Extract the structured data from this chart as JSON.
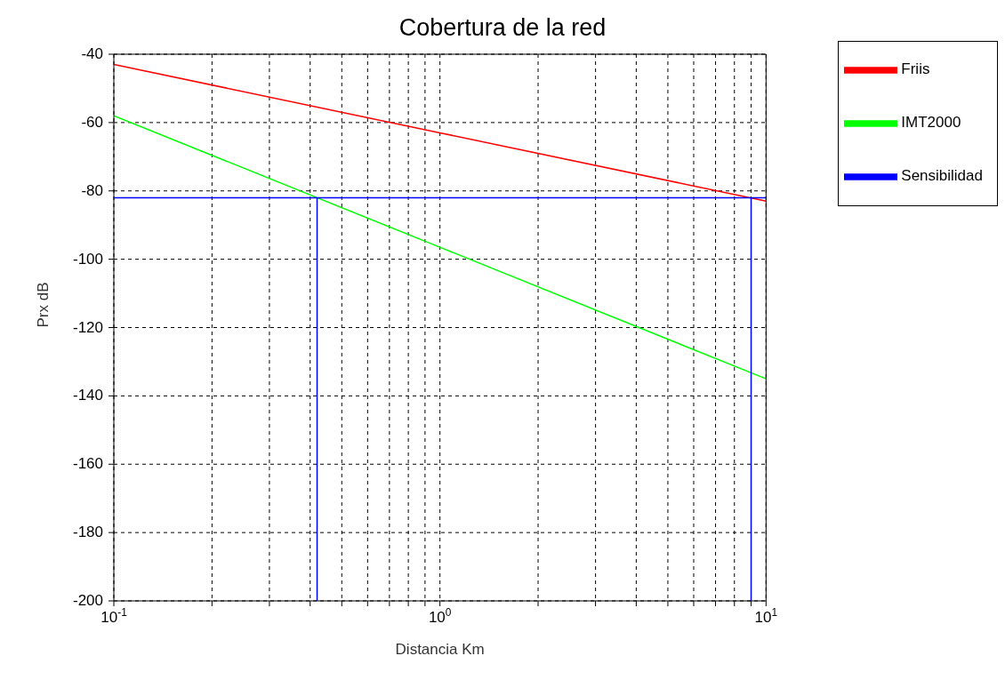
{
  "chart_data": {
    "type": "line",
    "title": "Cobertura de la red",
    "xlabel": "Distancia Km",
    "ylabel": "Prx dB",
    "log": "x",
    "xlim": [
      0.1,
      10
    ],
    "xticks": [
      {
        "value": 0.1,
        "label": "10$^{-1}$"
      },
      {
        "value": 0.2,
        "label": null
      },
      {
        "value": 0.3,
        "label": null
      },
      {
        "value": 0.4,
        "label": null
      },
      {
        "value": 0.5,
        "label": null
      },
      {
        "value": 0.6,
        "label": null
      },
      {
        "value": 0.7,
        "label": null
      },
      {
        "value": 0.8,
        "label": null
      },
      {
        "value": 0.9,
        "label": null
      },
      {
        "value": 1,
        "label": "10$^{0}$"
      },
      {
        "value": 2,
        "label": null
      },
      {
        "value": 3,
        "label": null
      },
      {
        "value": 4,
        "label": null
      },
      {
        "value": 5,
        "label": null
      },
      {
        "value": 6,
        "label": null
      },
      {
        "value": 7,
        "label": null
      },
      {
        "value": 8,
        "label": null
      },
      {
        "value": 9,
        "label": null
      },
      {
        "value": 10,
        "label": "10$^{1}$"
      }
    ],
    "ylim": [
      -200,
      -40
    ],
    "yticks": [
      -200,
      -180,
      -160,
      -140,
      -120,
      -100,
      -80,
      -60,
      -40
    ],
    "grid": true,
    "legend": "top right",
    "series": [
      {
        "name": "Friis",
        "color": "#ff0000",
        "x": [
          0.1,
          1,
          10
        ],
        "values": [
          -43,
          -63,
          -83
        ]
      },
      {
        "name": "IMT2000",
        "color": "#00ff00",
        "x": [
          0.1,
          1,
          10
        ],
        "values": [
          -58,
          -96.5,
          -135
        ]
      },
      {
        "name": "Sensibilidad",
        "color": "#0000ff",
        "x": [
          0.42,
          0.42,
          0.1,
          10,
          9,
          9
        ],
        "values": [
          -200,
          -82,
          -82,
          -82,
          -82,
          -200
        ]
      }
    ]
  }
}
